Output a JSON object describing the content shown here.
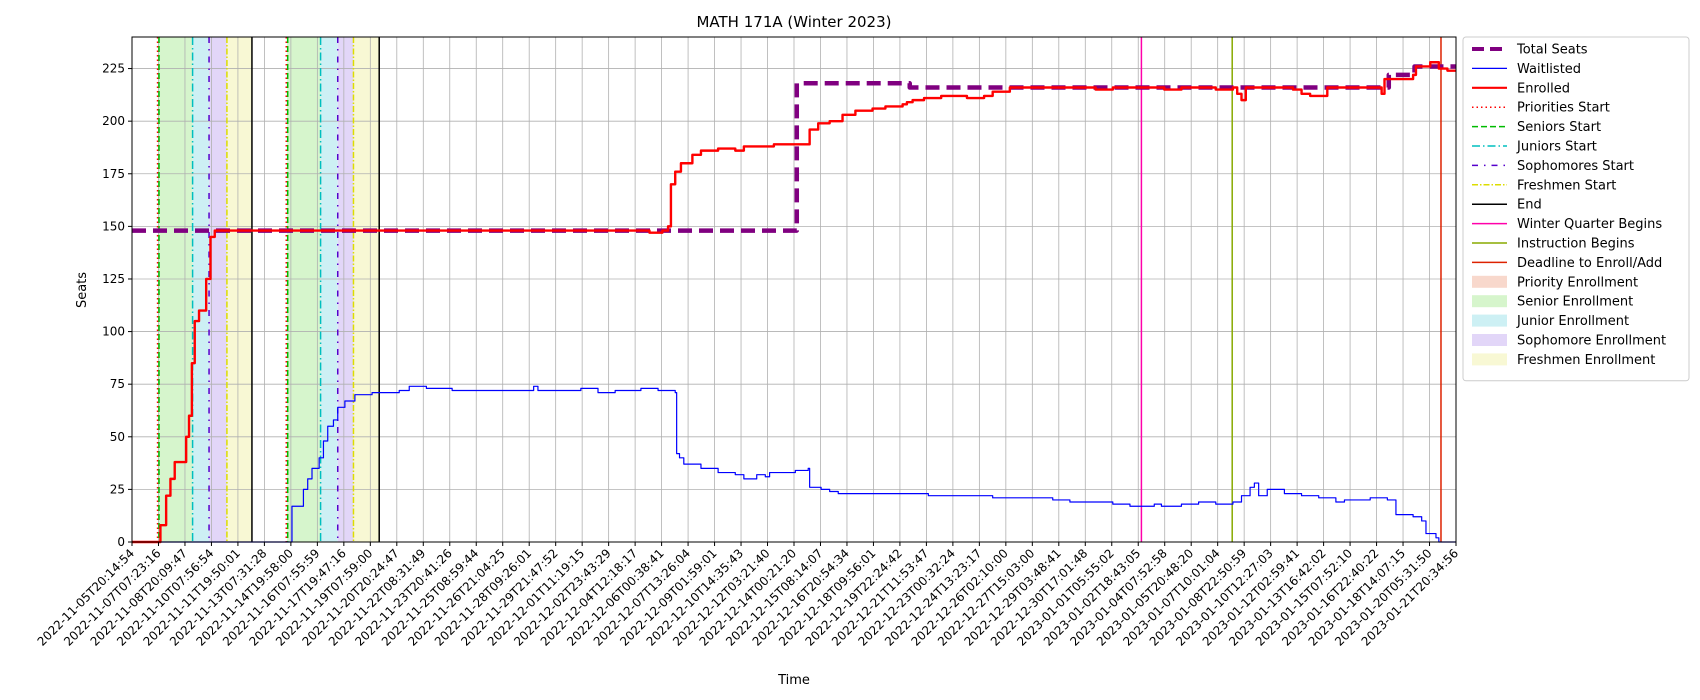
{
  "chart_data": {
    "type": "line",
    "title": "MATH 171A (Winter 2023)",
    "xlabel": "Time",
    "ylabel": "Seats",
    "x_range": [
      "2022-11-05T20:14:54",
      "2023-01-22T00:00:00"
    ],
    "ylim": [
      0,
      240
    ],
    "yticks": [
      0,
      25,
      50,
      75,
      100,
      125,
      150,
      175,
      200,
      225
    ],
    "grid": true,
    "legend_placement": "outside-right-top",
    "xtick_labels": [
      "2022-11-05T20:14:54",
      "2022-11-07T07:23:16",
      "2022-11-08T20:09:47",
      "2022-11-10T07:56:54",
      "2022-11-11T19:50:01",
      "2022-11-13T07:31:28",
      "2022-11-14T19:58:00",
      "2022-11-16T07:55:59",
      "2022-11-17T19:47:16",
      "2022-11-19T07:59:00",
      "2022-11-20T20:24:47",
      "2022-11-22T08:31:49",
      "2022-11-23T20:41:26",
      "2022-11-25T08:59:44",
      "2022-11-26T21:04:25",
      "2022-11-28T09:26:01",
      "2022-11-29T21:47:52",
      "2022-12-01T11:19:15",
      "2022-12-02T23:43:29",
      "2022-12-04T12:18:17",
      "2022-12-06T00:38:41",
      "2022-12-07T13:26:04",
      "2022-12-09T01:59:01",
      "2022-12-10T14:35:43",
      "2022-12-12T03:21:40",
      "2022-12-14T00:21:20",
      "2022-12-15T08:14:07",
      "2022-12-16T20:54:34",
      "2022-12-18T09:56:01",
      "2022-12-19T22:24:42",
      "2022-12-21T11:53:47",
      "2022-12-23T00:32:24",
      "2022-12-24T13:23:17",
      "2022-12-26T02:10:00",
      "2022-12-27T15:03:00",
      "2022-12-29T03:48:41",
      "2022-12-30T17:01:48",
      "2023-01-01T05:55:02",
      "2023-01-02T18:43:05",
      "2023-01-04T07:52:58",
      "2023-01-05T20:48:20",
      "2023-01-07T10:01:04",
      "2023-01-08T22:50:59",
      "2023-01-10T12:27:03",
      "2023-01-12T02:59:41",
      "2023-01-13T16:42:02",
      "2023-01-15T07:52:10",
      "2023-01-16T22:40:22",
      "2023-01-18T14:07:15",
      "2023-01-20T05:31:50",
      "2023-01-21T20:34:56"
    ],
    "enrollment_windows": [
      {
        "kind": "senior",
        "start": "2022-11-07T09:00:00",
        "end": "2022-11-09T09:00:00"
      },
      {
        "kind": "junior",
        "start": "2022-11-09T09:00:00",
        "end": "2022-11-10T08:00:00"
      },
      {
        "kind": "sophomore",
        "start": "2022-11-10T08:00:00",
        "end": "2022-11-11T09:00:00"
      },
      {
        "kind": "freshmen",
        "start": "2022-11-11T09:00:00",
        "end": "2022-11-12T20:00:00"
      },
      {
        "kind": "senior",
        "start": "2022-11-14T21:00:00",
        "end": "2022-11-16T20:00:00"
      },
      {
        "kind": "junior",
        "start": "2022-11-16T20:00:00",
        "end": "2022-11-17T20:00:00"
      },
      {
        "kind": "sophomore",
        "start": "2022-11-17T20:00:00",
        "end": "2022-11-18T18:00:00"
      },
      {
        "kind": "freshmen",
        "start": "2022-11-18T18:00:00",
        "end": "2022-11-20T06:00:00"
      }
    ],
    "event_lines": [
      {
        "kind": "priorities_start",
        "x": "2022-11-07T08:00:00"
      },
      {
        "kind": "seniors_start",
        "x": "2022-11-07T10:00:00"
      },
      {
        "kind": "juniors_start",
        "x": "2022-11-09T09:00:00"
      },
      {
        "kind": "sophomores_start",
        "x": "2022-11-10T08:00:00"
      },
      {
        "kind": "freshmen_start",
        "x": "2022-11-11T09:00:00"
      },
      {
        "kind": "end",
        "x": "2022-11-12T20:00:00"
      },
      {
        "kind": "priorities_start",
        "x": "2022-11-14T20:00:00"
      },
      {
        "kind": "seniors_start",
        "x": "2022-11-14T22:00:00"
      },
      {
        "kind": "juniors_start",
        "x": "2022-11-16T20:00:00"
      },
      {
        "kind": "sophomores_start",
        "x": "2022-11-17T20:00:00"
      },
      {
        "kind": "freshmen_start",
        "x": "2022-11-18T18:00:00"
      },
      {
        "kind": "end",
        "x": "2022-11-20T06:00:00"
      },
      {
        "kind": "winter_quarter_begins",
        "x": "2023-01-03T16:00:00"
      },
      {
        "kind": "instruction_begins",
        "x": "2023-01-08T23:00:00"
      },
      {
        "kind": "deadline_enroll_add",
        "x": "2023-01-21T03:00:00"
      }
    ],
    "series": [
      {
        "name": "Total Seats",
        "points": [
          [
            "2022-11-05T20:14:54",
            148
          ],
          [
            "2022-12-14T12:00:00",
            148
          ],
          [
            "2022-12-14T14:00:00",
            218
          ],
          [
            "2022-12-21T00:00:00",
            218
          ],
          [
            "2022-12-21T04:00:00",
            216
          ],
          [
            "2023-01-18T00:00:00",
            216
          ],
          [
            "2023-01-18T02:00:00",
            222
          ],
          [
            "2023-01-19T12:00:00",
            222
          ],
          [
            "2023-01-19T14:00:00",
            226
          ],
          [
            "2023-01-22T00:00:00",
            226
          ]
        ]
      },
      {
        "name": "Waitlisted",
        "points": [
          [
            "2022-11-05T20:14:54",
            0
          ],
          [
            "2022-11-14T20:00:00",
            0
          ],
          [
            "2022-11-15T04:00:00",
            17
          ],
          [
            "2022-11-15T12:00:00",
            17
          ],
          [
            "2022-11-15T20:00:00",
            25
          ],
          [
            "2022-11-16T02:00:00",
            30
          ],
          [
            "2022-11-16T08:00:00",
            35
          ],
          [
            "2022-11-16T18:00:00",
            40
          ],
          [
            "2022-11-17T00:00:00",
            48
          ],
          [
            "2022-11-17T06:00:00",
            55
          ],
          [
            "2022-11-17T14:00:00",
            58
          ],
          [
            "2022-11-17T20:00:00",
            64
          ],
          [
            "2022-11-18T06:00:00",
            67
          ],
          [
            "2022-11-18T20:00:00",
            70
          ],
          [
            "2022-11-19T20:00:00",
            71
          ],
          [
            "2022-11-21T10:00:00",
            72
          ],
          [
            "2022-11-22T00:00:00",
            74
          ],
          [
            "2022-11-23T00:00:00",
            73
          ],
          [
            "2022-11-24T12:00:00",
            72
          ],
          [
            "2022-11-29T00:00:00",
            72
          ],
          [
            "2022-11-29T06:00:00",
            74
          ],
          [
            "2022-11-29T12:00:00",
            72
          ],
          [
            "2022-12-02T00:00:00",
            73
          ],
          [
            "2022-12-03T00:00:00",
            71
          ],
          [
            "2022-12-04T00:00:00",
            72
          ],
          [
            "2022-12-05T12:00:00",
            73
          ],
          [
            "2022-12-06T12:00:00",
            72
          ],
          [
            "2022-12-07T12:00:00",
            71
          ],
          [
            "2022-12-07T14:00:00",
            42
          ],
          [
            "2022-12-07T18:00:00",
            40
          ],
          [
            "2022-12-08T00:00:00",
            37
          ],
          [
            "2022-12-09T00:00:00",
            35
          ],
          [
            "2022-12-10T00:00:00",
            33
          ],
          [
            "2022-12-11T00:00:00",
            32
          ],
          [
            "2022-12-11T12:00:00",
            30
          ],
          [
            "2022-12-12T06:00:00",
            32
          ],
          [
            "2022-12-12T18:00:00",
            31
          ],
          [
            "2022-12-13T00:00:00",
            33
          ],
          [
            "2022-12-14T12:00:00",
            34
          ],
          [
            "2022-12-15T06:00:00",
            35
          ],
          [
            "2022-12-15T08:00:00",
            26
          ],
          [
            "2022-12-16T00:00:00",
            25
          ],
          [
            "2022-12-16T12:00:00",
            24
          ],
          [
            "2022-12-17T00:00:00",
            23
          ],
          [
            "2022-12-22T06:00:00",
            22
          ],
          [
            "2022-12-26T00:00:00",
            21
          ],
          [
            "2022-12-29T12:00:00",
            20
          ],
          [
            "2022-12-30T12:00:00",
            19
          ],
          [
            "2023-01-02T00:00:00",
            18
          ],
          [
            "2023-01-03T00:00:00",
            17
          ],
          [
            "2023-01-04T10:00:00",
            18
          ],
          [
            "2023-01-04T20:00:00",
            17
          ],
          [
            "2023-01-06T00:00:00",
            18
          ],
          [
            "2023-01-07T00:00:00",
            19
          ],
          [
            "2023-01-08T00:00:00",
            18
          ],
          [
            "2023-01-09T00:00:00",
            19
          ],
          [
            "2023-01-09T12:00:00",
            22
          ],
          [
            "2023-01-10T00:00:00",
            26
          ],
          [
            "2023-01-10T06:00:00",
            28
          ],
          [
            "2023-01-10T12:00:00",
            22
          ],
          [
            "2023-01-11T00:00:00",
            25
          ],
          [
            "2023-01-12T00:00:00",
            23
          ],
          [
            "2023-01-13T00:00:00",
            22
          ],
          [
            "2023-01-14T00:00:00",
            21
          ],
          [
            "2023-01-15T00:00:00",
            19
          ],
          [
            "2023-01-15T12:00:00",
            20
          ],
          [
            "2023-01-17T00:00:00",
            21
          ],
          [
            "2023-01-18T00:00:00",
            20
          ],
          [
            "2023-01-18T12:00:00",
            13
          ],
          [
            "2023-01-19T12:00:00",
            12
          ],
          [
            "2023-01-20T00:00:00",
            10
          ],
          [
            "2023-01-20T06:00:00",
            4
          ],
          [
            "2023-01-20T20:00:00",
            2
          ],
          [
            "2023-01-21T00:00:00",
            0
          ],
          [
            "2023-01-22T00:00:00",
            0
          ]
        ]
      },
      {
        "name": "Enrolled",
        "points": [
          [
            "2022-11-05T20:14:54",
            0
          ],
          [
            "2022-11-07T10:00:00",
            0
          ],
          [
            "2022-11-07T12:00:00",
            8
          ],
          [
            "2022-11-07T20:00:00",
            22
          ],
          [
            "2022-11-08T02:00:00",
            30
          ],
          [
            "2022-11-08T08:00:00",
            38
          ],
          [
            "2022-11-08T18:00:00",
            38
          ],
          [
            "2022-11-09T00:00:00",
            50
          ],
          [
            "2022-11-09T04:00:00",
            60
          ],
          [
            "2022-11-09T08:00:00",
            85
          ],
          [
            "2022-11-09T12:00:00",
            105
          ],
          [
            "2022-11-09T18:00:00",
            110
          ],
          [
            "2022-11-10T00:00:00",
            110
          ],
          [
            "2022-11-10T04:00:00",
            125
          ],
          [
            "2022-11-10T10:00:00",
            145
          ],
          [
            "2022-11-10T16:00:00",
            148
          ],
          [
            "2022-12-05T00:00:00",
            148
          ],
          [
            "2022-12-06T00:00:00",
            147
          ],
          [
            "2022-12-06T18:00:00",
            148
          ],
          [
            "2022-12-07T02:00:00",
            150
          ],
          [
            "2022-12-07T06:00:00",
            170
          ],
          [
            "2022-12-07T12:00:00",
            176
          ],
          [
            "2022-12-07T20:00:00",
            180
          ],
          [
            "2022-12-08T12:00:00",
            184
          ],
          [
            "2022-12-09T00:00:00",
            186
          ],
          [
            "2022-12-10T00:00:00",
            187
          ],
          [
            "2022-12-11T00:00:00",
            186
          ],
          [
            "2022-12-11T12:00:00",
            188
          ],
          [
            "2022-12-13T00:00:00",
            188
          ],
          [
            "2022-12-13T06:00:00",
            189
          ],
          [
            "2022-12-15T06:00:00",
            189
          ],
          [
            "2022-12-15T08:00:00",
            196
          ],
          [
            "2022-12-15T20:00:00",
            199
          ],
          [
            "2022-12-16T12:00:00",
            200
          ],
          [
            "2022-12-17T06:00:00",
            203
          ],
          [
            "2022-12-18T00:00:00",
            205
          ],
          [
            "2022-12-19T00:00:00",
            206
          ],
          [
            "2022-12-19T18:00:00",
            207
          ],
          [
            "2022-12-20T18:00:00",
            208
          ],
          [
            "2022-12-21T00:00:00",
            209
          ],
          [
            "2022-12-21T08:00:00",
            210
          ],
          [
            "2022-12-22T00:00:00",
            211
          ],
          [
            "2022-12-23T00:00:00",
            212
          ],
          [
            "2022-12-24T12:00:00",
            211
          ],
          [
            "2022-12-25T12:00:00",
            212
          ],
          [
            "2022-12-26T00:00:00",
            214
          ],
          [
            "2022-12-27T00:00:00",
            216
          ],
          [
            "2022-12-31T00:00:00",
            216
          ],
          [
            "2023-01-01T00:00:00",
            215
          ],
          [
            "2023-01-02T00:00:00",
            216
          ],
          [
            "2023-01-05T00:00:00",
            215
          ],
          [
            "2023-01-06T00:00:00",
            216
          ],
          [
            "2023-01-08T00:00:00",
            215
          ],
          [
            "2023-01-09T00:00:00",
            216
          ],
          [
            "2023-01-09T06:00:00",
            213
          ],
          [
            "2023-01-09T12:00:00",
            210
          ],
          [
            "2023-01-09T18:00:00",
            216
          ],
          [
            "2023-01-12T00:00:00",
            216
          ],
          [
            "2023-01-12T12:00:00",
            215
          ],
          [
            "2023-01-13T00:00:00",
            213
          ],
          [
            "2023-01-13T12:00:00",
            212
          ],
          [
            "2023-01-14T12:00:00",
            216
          ],
          [
            "2023-01-17T12:00:00",
            216
          ],
          [
            "2023-01-17T16:00:00",
            213
          ],
          [
            "2023-01-17T20:00:00",
            220
          ],
          [
            "2023-01-19T00:00:00",
            220
          ],
          [
            "2023-01-19T12:00:00",
            222
          ],
          [
            "2023-01-19T16:00:00",
            226
          ],
          [
            "2023-01-20T12:00:00",
            228
          ],
          [
            "2023-01-21T00:00:00",
            225
          ],
          [
            "2023-01-21T12:00:00",
            224
          ],
          [
            "2023-01-22T00:00:00",
            224
          ]
        ]
      }
    ],
    "legend": [
      {
        "label": "Total Seats",
        "kind": "line",
        "color": "#800080",
        "dash": "12,6",
        "width": 4
      },
      {
        "label": "Waitlisted",
        "kind": "line",
        "color": "#0000ff",
        "dash": "",
        "width": 1.2
      },
      {
        "label": "Enrolled",
        "kind": "line",
        "color": "#ff0000",
        "dash": "",
        "width": 2.2
      },
      {
        "label": "Priorities Start",
        "kind": "line",
        "color": "#ff0000",
        "dash": "1.5,3",
        "width": 1.5
      },
      {
        "label": "Seniors Start",
        "kind": "line",
        "color": "#00bb00",
        "dash": "6,3",
        "width": 1.5
      },
      {
        "label": "Juniors Start",
        "kind": "line",
        "color": "#00bfbf",
        "dash": "8,3,1.5,3",
        "width": 1.5
      },
      {
        "label": "Sophomores Start",
        "kind": "line",
        "color": "#5500cc",
        "dash": "6,6,1.5,6",
        "width": 1.5
      },
      {
        "label": "Freshmen Start",
        "kind": "line",
        "color": "#dddd00",
        "dash": "6,2,1.5,2",
        "width": 1.5
      },
      {
        "label": "End",
        "kind": "line",
        "color": "#000000",
        "dash": "",
        "width": 1.5
      },
      {
        "label": "Winter Quarter Begins",
        "kind": "line",
        "color": "#ff00aa",
        "dash": "",
        "width": 1.5
      },
      {
        "label": "Instruction Begins",
        "kind": "line",
        "color": "#88aa00",
        "dash": "",
        "width": 1.5
      },
      {
        "label": "Deadline to Enroll/Add",
        "kind": "line",
        "color": "#dd2200",
        "dash": "",
        "width": 1.5
      },
      {
        "label": "Priority Enrollment",
        "kind": "patch",
        "color": "#f8d8cc"
      },
      {
        "label": "Senior Enrollment",
        "kind": "patch",
        "color": "#d6f5cc"
      },
      {
        "label": "Junior Enrollment",
        "kind": "patch",
        "color": "#cdf0f4"
      },
      {
        "label": "Sophomore Enrollment",
        "kind": "patch",
        "color": "#e2d6f8"
      },
      {
        "label": "Freshmen Enrollment",
        "kind": "patch",
        "color": "#f8f8d4"
      }
    ],
    "window_colors": {
      "priority": "#f8d8cc",
      "senior": "#d6f5cc",
      "junior": "#cdf0f4",
      "sophomore": "#e2d6f8",
      "freshmen": "#f8f8d4"
    },
    "event_styles": {
      "priorities_start": {
        "color": "#ff0000",
        "dash": "1.5,3"
      },
      "seniors_start": {
        "color": "#00bb00",
        "dash": "6,3"
      },
      "juniors_start": {
        "color": "#00bfbf",
        "dash": "8,3,1.5,3"
      },
      "sophomores_start": {
        "color": "#5500cc",
        "dash": "6,6,1.5,6"
      },
      "freshmen_start": {
        "color": "#dddd00",
        "dash": "6,2,1.5,2"
      },
      "end": {
        "color": "#000000",
        "dash": ""
      },
      "winter_quarter_begins": {
        "color": "#ff00aa",
        "dash": ""
      },
      "instruction_begins": {
        "color": "#88aa00",
        "dash": ""
      },
      "deadline_enroll_add": {
        "color": "#dd2200",
        "dash": ""
      }
    }
  }
}
